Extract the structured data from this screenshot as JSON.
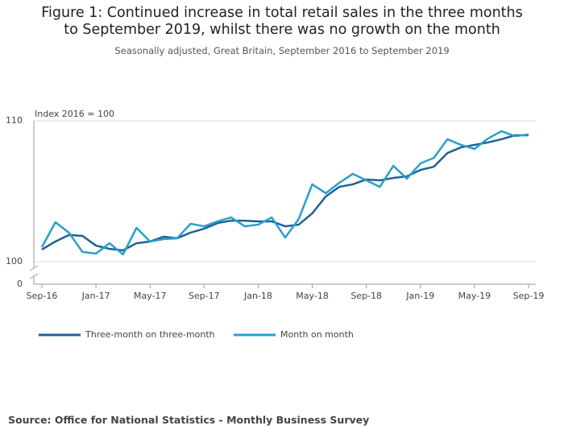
{
  "chart_data": {
    "type": "line",
    "title": "Figure 1: Continued increase in total retail sales in the three months to September 2019, whilst there was no growth on the month",
    "subtitle": "Seasonally adjusted, Great Britain, September 2016 to September 2019",
    "y_axis_label": "Index 2016 = 100",
    "source": "Source: Office for National Statistics - Monthly Business Survey",
    "categories": [
      "Sep-16",
      null,
      null,
      null,
      "Jan-17",
      null,
      null,
      null,
      "May-17",
      null,
      null,
      null,
      "Sep-17",
      null,
      null,
      null,
      "Jan-18",
      null,
      null,
      null,
      "May-18",
      null,
      null,
      null,
      "Sep-18",
      null,
      null,
      null,
      "Jan-19",
      null,
      null,
      null,
      "May-19",
      null,
      null,
      null,
      "Sep-19"
    ],
    "series": [
      {
        "name": "Three-month on three-month",
        "color": "#206095",
        "values": [
          100.86,
          101.43,
          101.89,
          101.83,
          101.14,
          100.91,
          100.8,
          101.31,
          101.43,
          101.77,
          101.66,
          102.06,
          102.34,
          102.74,
          102.91,
          102.91,
          102.86,
          102.86,
          102.51,
          102.63,
          103.43,
          104.63,
          105.31,
          105.49,
          105.83,
          105.77,
          105.94,
          106.06,
          106.51,
          106.74,
          107.71,
          108.11,
          108.29,
          108.46,
          108.69,
          108.97,
          108.97
        ]
      },
      {
        "name": "Month on month",
        "color": "#27a0cc",
        "values": [
          101.03,
          102.8,
          102.06,
          100.69,
          100.57,
          101.31,
          100.51,
          102.4,
          101.43,
          101.6,
          101.66,
          102.69,
          102.51,
          102.86,
          103.14,
          102.51,
          102.63,
          103.14,
          101.71,
          103.03,
          105.49,
          104.86,
          105.6,
          106.23,
          105.77,
          105.31,
          106.8,
          105.89,
          106.97,
          107.37,
          108.69,
          108.29,
          108,
          108.74,
          109.26,
          108.91,
          109.03
        ]
      }
    ],
    "ylim": [
      100,
      110
    ],
    "yticks": [
      0,
      100,
      110
    ],
    "axis_break": true,
    "grid": true,
    "legend": "bottom"
  }
}
